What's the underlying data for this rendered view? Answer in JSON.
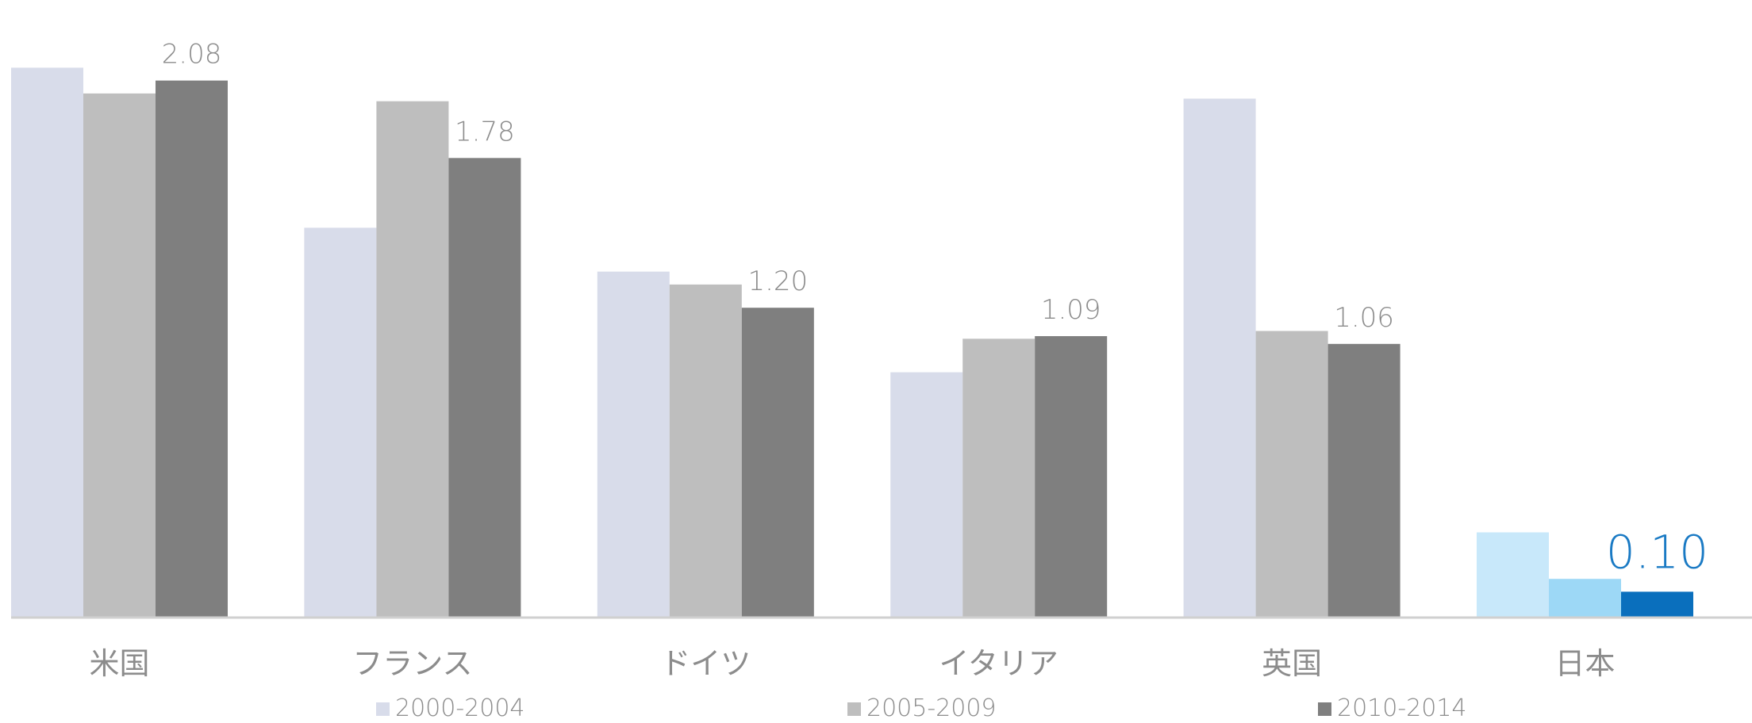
{
  "chart_data": {
    "type": "bar",
    "categories": [
      "米国",
      "フランス",
      "ドイツ",
      "イタリア",
      "英国",
      "日本"
    ],
    "series": [
      {
        "name": "2000-2004",
        "color": "#d8dcea",
        "values": [
          2.13,
          1.51,
          1.34,
          0.95,
          2.01,
          0.33
        ]
      },
      {
        "name": "2005-2009",
        "color": "#bebebe",
        "values": [
          2.03,
          2.0,
          1.29,
          1.08,
          1.11,
          0.15
        ]
      },
      {
        "name": "2010-2014",
        "color": "#7f7f7f",
        "values": [
          2.08,
          1.78,
          1.2,
          1.09,
          1.06,
          0.1
        ]
      }
    ],
    "highlight": {
      "category": "日本",
      "colors": [
        "#c8e8fa",
        "#9dd8f6",
        "#0a6fbd"
      ],
      "label_color": "#1a7ac4"
    },
    "data_labels": [
      "2.08",
      "1.78",
      "1.20",
      "1.09",
      "1.06",
      "0.10"
    ],
    "data_label_series": "2010-2014",
    "ylim": [
      0,
      2.3
    ],
    "grid": false,
    "legend_position": "bottom",
    "baseline_color": "#d0d0d0",
    "label_color": "#8c8c8c"
  }
}
